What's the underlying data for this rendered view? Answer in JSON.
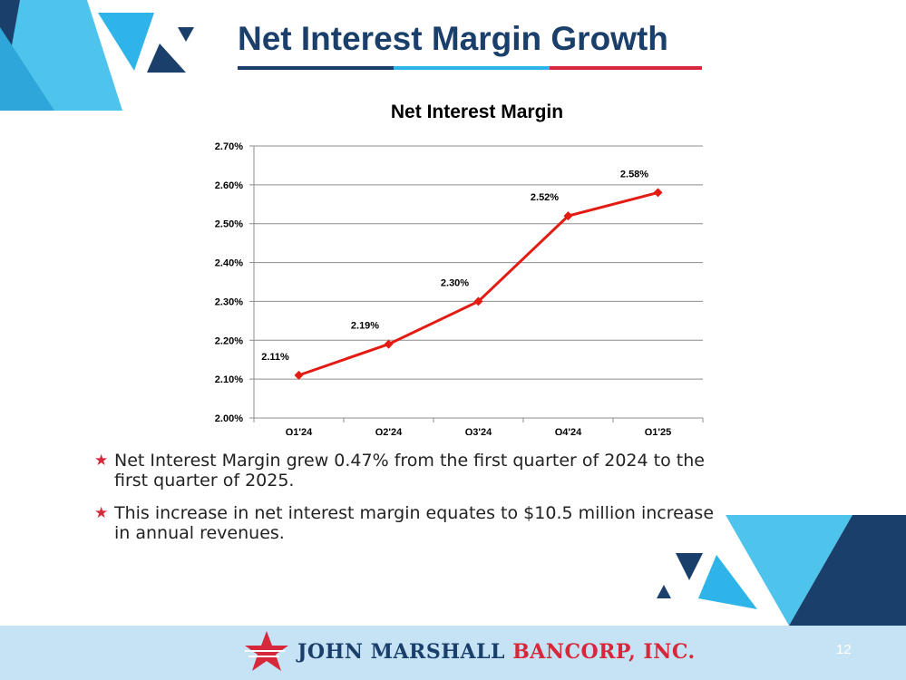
{
  "slide": {
    "title": "Net Interest Margin Growth",
    "page_number": "12",
    "bullets": [
      "Net Interest Margin grew 0.47% from the first quarter of 2024 to the first quarter of 2025.",
      "This increase in net interest margin equates to $10.5 million increase in annual revenues."
    ],
    "logo": {
      "part1": "JOHN MARSHALL",
      "part2": "BANCORP, INC."
    },
    "colors": {
      "navy": "#1b3f6b",
      "sky": "#2fb4e9",
      "red": "#d6283a",
      "light_blue": "#c6e3f6"
    }
  },
  "chart_data": {
    "type": "line",
    "title": "Net Interest Margin",
    "categories": [
      "Q1'24",
      "Q2'24",
      "Q3'24",
      "Q4'24",
      "Q1'25"
    ],
    "values": [
      2.11,
      2.19,
      2.3,
      2.52,
      2.58
    ],
    "data_labels": [
      "2.11%",
      "2.19%",
      "2.30%",
      "2.52%",
      "2.58%"
    ],
    "ylim": [
      2.0,
      2.7
    ],
    "y_ticks": [
      "2.00%",
      "2.10%",
      "2.20%",
      "2.30%",
      "2.40%",
      "2.50%",
      "2.60%",
      "2.70%"
    ],
    "grid": true,
    "legend": "none",
    "line_color": "#e31b12"
  }
}
